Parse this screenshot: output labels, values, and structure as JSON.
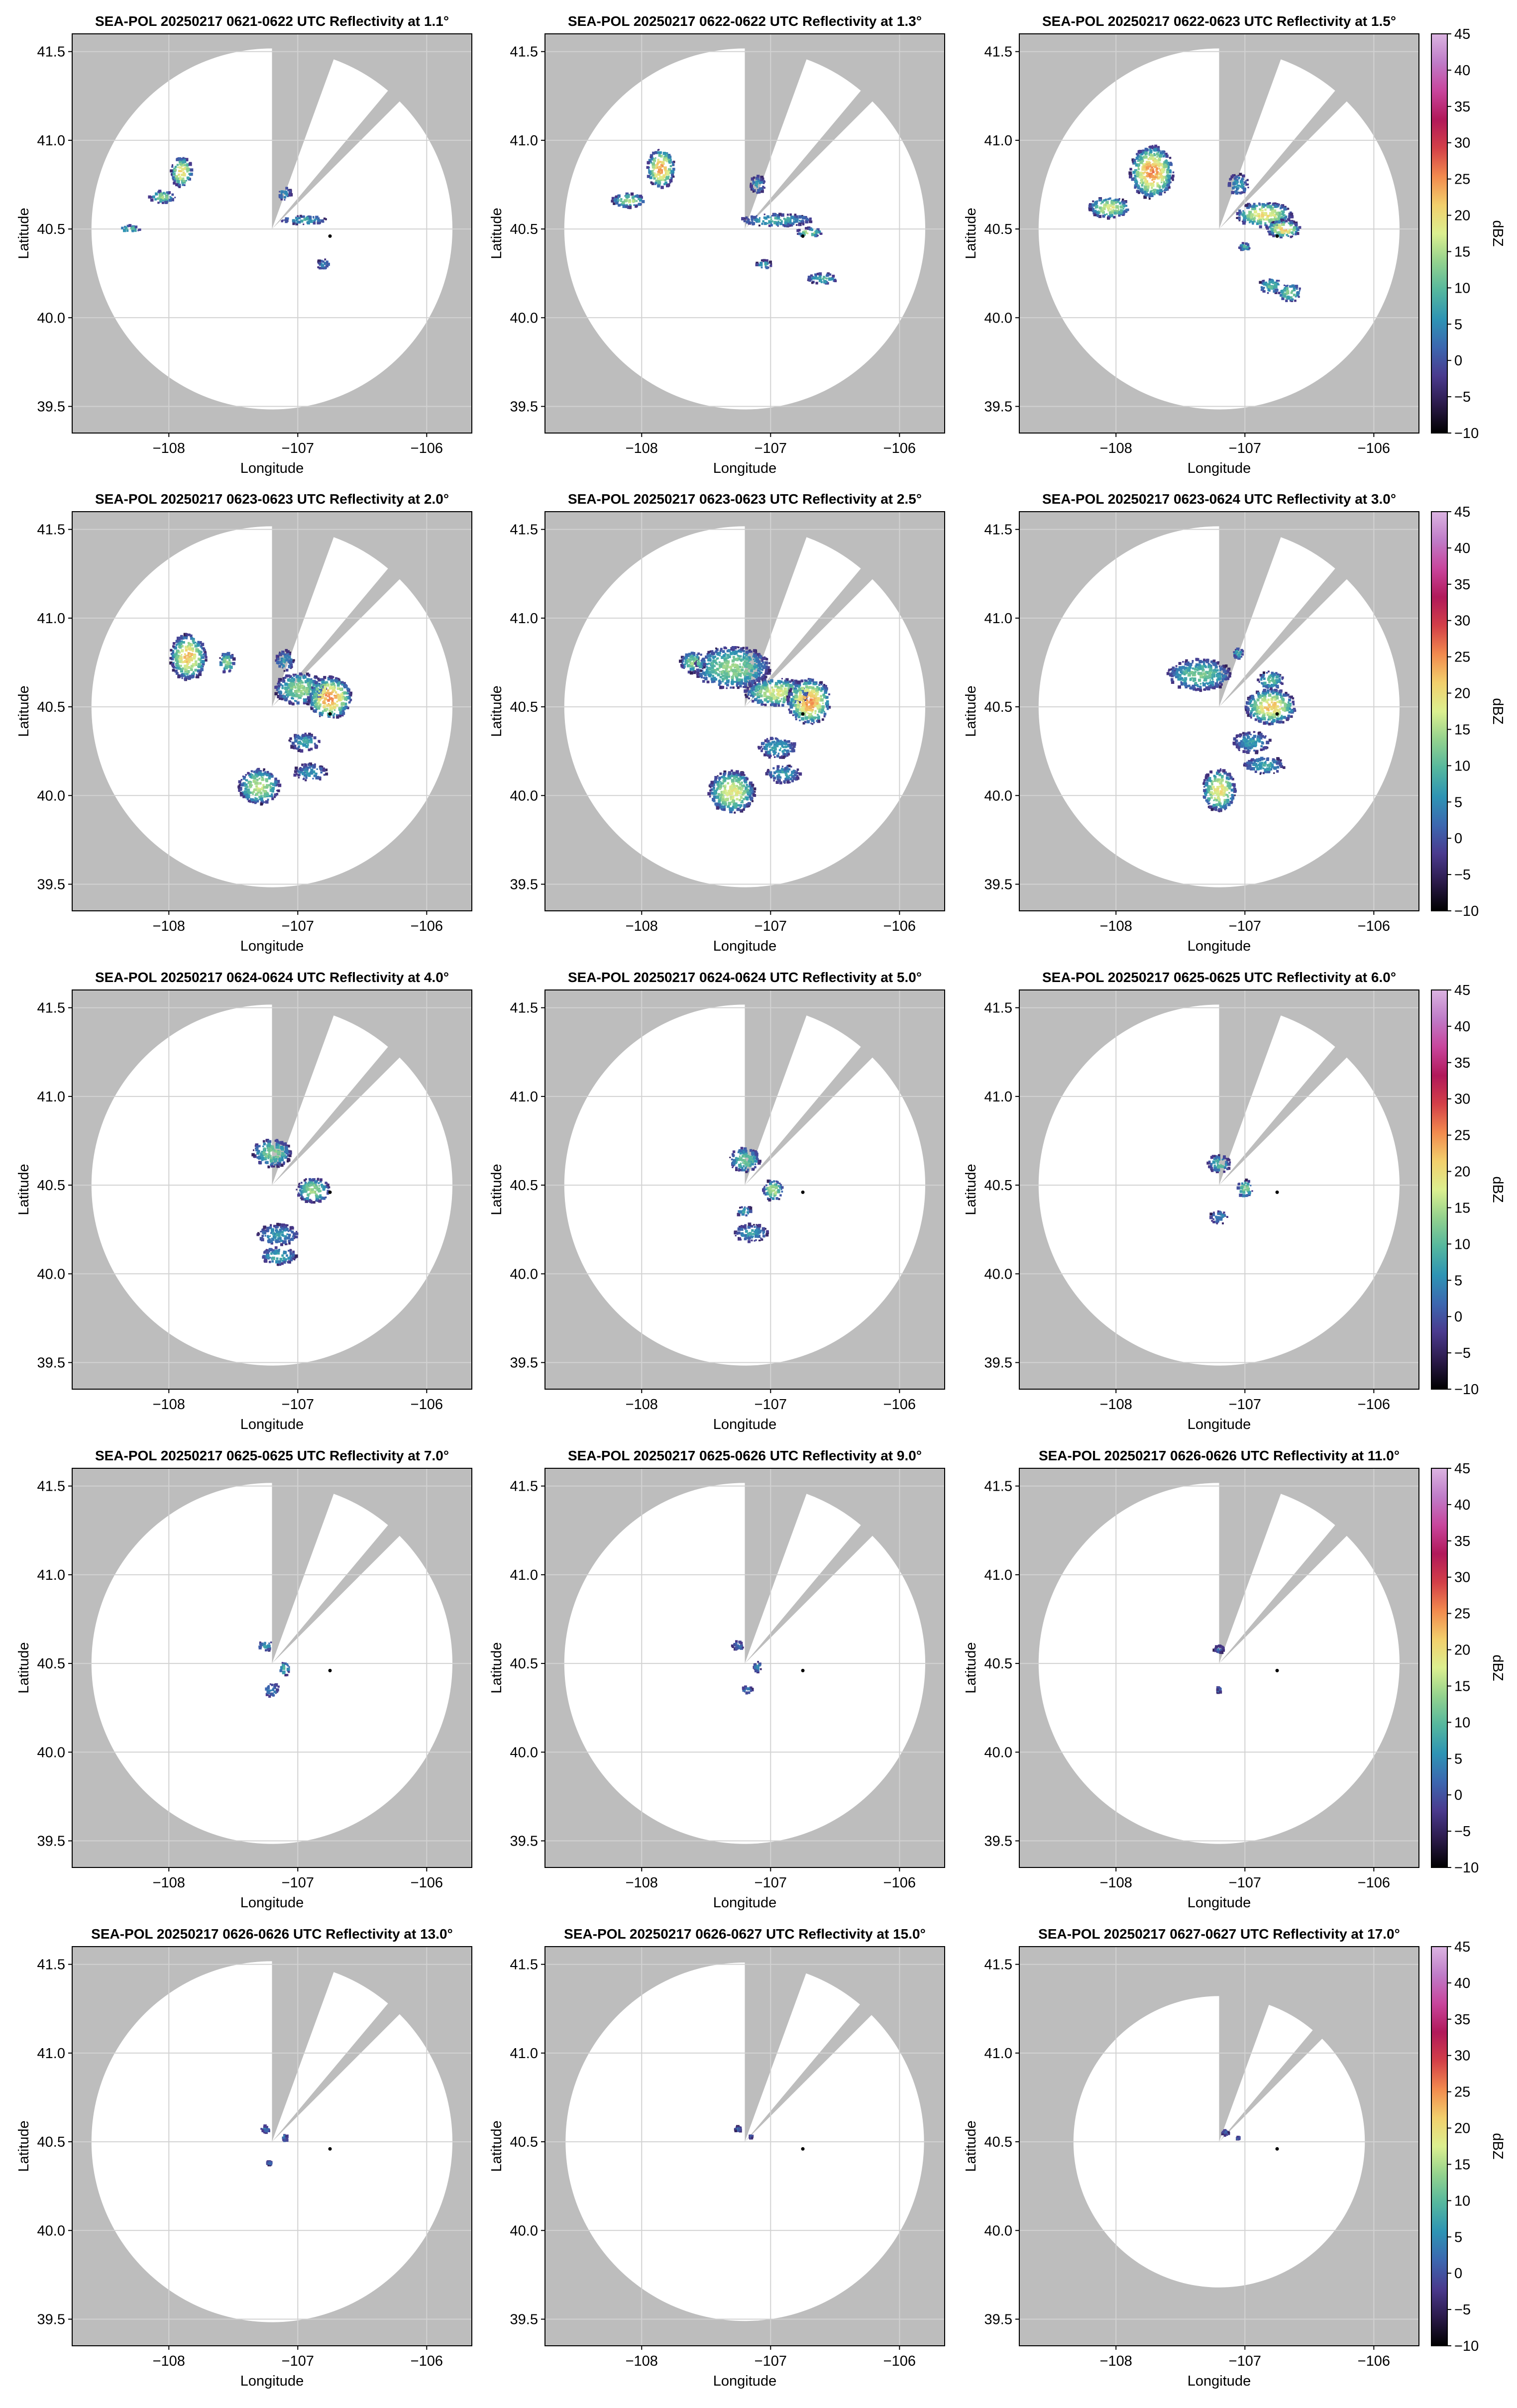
{
  "chart_data": {
    "type": "heatmap",
    "figure": "SEA-POL radar reflectivity PPI grid",
    "xlabel": "Longitude",
    "ylabel": "Latitude",
    "xlim": [
      -108.75,
      -105.65
    ],
    "ylim": [
      39.35,
      41.6
    ],
    "xticks": [
      -108,
      -107,
      -106
    ],
    "xtick_labels": [
      "−108",
      "−107",
      "−106"
    ],
    "yticks": [
      39.5,
      40.0,
      40.5,
      41.0,
      41.5
    ],
    "ytick_labels": [
      "39.5",
      "40.0",
      "40.5",
      "41.0",
      "41.5"
    ],
    "radar_site": [
      -107.2,
      40.5
    ],
    "target_point": [
      -106.75,
      40.46
    ],
    "blocked_sectors_deg": [
      [
        0,
        20
      ],
      [
        40,
        45
      ]
    ],
    "colorbar": {
      "label": "dBZ",
      "min": -10,
      "max": 45,
      "ticks": [
        -10,
        -5,
        0,
        5,
        10,
        15,
        20,
        25,
        30,
        35,
        40,
        45
      ],
      "tick_labels": [
        "−10",
        "−5",
        "0",
        "5",
        "10",
        "15",
        "20",
        "25",
        "30",
        "35",
        "40",
        "45"
      ],
      "colors": [
        "#000000",
        "#2b1a4a",
        "#4a3a8e",
        "#3c67b0",
        "#2e94b4",
        "#55b79e",
        "#93d28e",
        "#dcef8f",
        "#f2cf6c",
        "#f28a4e",
        "#d33f48",
        "#b1195a",
        "#c8459c",
        "#bf7cc8",
        "#dbb4e1"
      ]
    },
    "panels": [
      {
        "title": "SEA-POL 20250217 0621-0622 UTC Reflectivity at 1.1°",
        "elevation_deg": 1.1,
        "range_deg": 1.4,
        "echoes": [
          [
            -107.9,
            40.82,
            0.085,
            0.085,
            21
          ],
          [
            -108.05,
            40.68,
            0.1,
            0.035,
            14
          ],
          [
            -106.95,
            40.55,
            0.18,
            0.025,
            8
          ],
          [
            -107.1,
            40.7,
            0.05,
            0.04,
            6
          ],
          [
            -106.8,
            40.3,
            0.05,
            0.03,
            5
          ],
          [
            -108.3,
            40.5,
            0.08,
            0.02,
            12
          ]
        ]
      },
      {
        "title": "SEA-POL 20250217 0622-0622 UTC Reflectivity at 1.3°",
        "elevation_deg": 1.3,
        "range_deg": 1.4,
        "echoes": [
          [
            -107.85,
            40.84,
            0.11,
            0.11,
            24
          ],
          [
            -108.1,
            40.66,
            0.13,
            0.04,
            16
          ],
          [
            -106.95,
            40.55,
            0.28,
            0.035,
            9
          ],
          [
            -106.7,
            40.48,
            0.1,
            0.025,
            16
          ],
          [
            -106.6,
            40.22,
            0.12,
            0.03,
            10
          ],
          [
            -107.05,
            40.3,
            0.06,
            0.025,
            8
          ],
          [
            -107.1,
            40.75,
            0.06,
            0.05,
            7
          ]
        ]
      },
      {
        "title": "SEA-POL 20250217 0622-0623 UTC Reflectivity at 1.5°",
        "elevation_deg": 1.5,
        "range_deg": 1.4,
        "echoes": [
          [
            -107.72,
            40.82,
            0.17,
            0.15,
            25
          ],
          [
            -108.05,
            40.62,
            0.16,
            0.06,
            18
          ],
          [
            -106.85,
            40.58,
            0.22,
            0.07,
            20
          ],
          [
            -106.7,
            40.5,
            0.13,
            0.05,
            22
          ],
          [
            -107.05,
            40.75,
            0.08,
            0.06,
            7
          ],
          [
            -106.8,
            40.18,
            0.09,
            0.045,
            10
          ],
          [
            -106.65,
            40.14,
            0.09,
            0.05,
            14
          ],
          [
            -107.0,
            40.4,
            0.05,
            0.02,
            9
          ]
        ]
      },
      {
        "title": "SEA-POL 20250217 0623-0623 UTC Reflectivity at 2.0°",
        "elevation_deg": 2.0,
        "range_deg": 1.4,
        "echoes": [
          [
            -107.85,
            40.78,
            0.14,
            0.13,
            22
          ],
          [
            -106.98,
            40.6,
            0.2,
            0.09,
            14
          ],
          [
            -106.75,
            40.55,
            0.17,
            0.12,
            25
          ],
          [
            -106.95,
            40.3,
            0.12,
            0.05,
            8
          ],
          [
            -106.9,
            40.13,
            0.13,
            0.05,
            6
          ],
          [
            -107.3,
            40.05,
            0.16,
            0.1,
            17
          ],
          [
            -107.1,
            40.76,
            0.07,
            0.06,
            6
          ],
          [
            -107.55,
            40.75,
            0.06,
            0.06,
            14
          ]
        ]
      },
      {
        "title": "SEA-POL 20250217 0623-0623 UTC Reflectivity at 2.5°",
        "elevation_deg": 2.5,
        "range_deg": 1.4,
        "echoes": [
          [
            -107.3,
            40.72,
            0.3,
            0.12,
            14
          ],
          [
            -106.95,
            40.58,
            0.25,
            0.08,
            18
          ],
          [
            -106.7,
            40.53,
            0.17,
            0.13,
            25
          ],
          [
            -106.95,
            40.27,
            0.15,
            0.06,
            8
          ],
          [
            -106.9,
            40.12,
            0.14,
            0.05,
            7
          ],
          [
            -107.3,
            40.02,
            0.18,
            0.12,
            19
          ],
          [
            -107.6,
            40.75,
            0.1,
            0.06,
            14
          ]
        ]
      },
      {
        "title": "SEA-POL 20250217 0623-0624 UTC Reflectivity at 3.0°",
        "elevation_deg": 3.0,
        "range_deg": 1.4,
        "echoes": [
          [
            -107.35,
            40.68,
            0.25,
            0.09,
            12
          ],
          [
            -106.8,
            40.5,
            0.2,
            0.1,
            22
          ],
          [
            -106.95,
            40.3,
            0.15,
            0.06,
            7
          ],
          [
            -106.85,
            40.17,
            0.16,
            0.05,
            8
          ],
          [
            -107.2,
            40.03,
            0.13,
            0.12,
            20
          ],
          [
            -106.8,
            40.65,
            0.1,
            0.05,
            12
          ],
          [
            -107.05,
            40.8,
            0.04,
            0.03,
            10
          ]
        ]
      },
      {
        "title": "SEA-POL 20250217 0624-0624 UTC Reflectivity at 4.0°",
        "elevation_deg": 4.0,
        "range_deg": 1.4,
        "echoes": [
          [
            -107.2,
            40.68,
            0.15,
            0.08,
            13
          ],
          [
            -106.88,
            40.47,
            0.13,
            0.07,
            15
          ],
          [
            -107.15,
            40.22,
            0.16,
            0.06,
            7
          ],
          [
            -107.15,
            40.1,
            0.14,
            0.05,
            9
          ]
        ]
      },
      {
        "title": "SEA-POL 20250217 0624-0624 UTC Reflectivity at 5.0°",
        "elevation_deg": 5.0,
        "range_deg": 1.4,
        "echoes": [
          [
            -107.2,
            40.64,
            0.12,
            0.07,
            12
          ],
          [
            -106.98,
            40.47,
            0.08,
            0.06,
            16
          ],
          [
            -107.15,
            40.23,
            0.13,
            0.05,
            7
          ],
          [
            -107.2,
            40.35,
            0.06,
            0.03,
            8
          ]
        ]
      },
      {
        "title": "SEA-POL 20250217 0625-0625 UTC Reflectivity at 6.0°",
        "elevation_deg": 6.0,
        "range_deg": 1.4,
        "echoes": [
          [
            -107.2,
            40.62,
            0.09,
            0.05,
            10
          ],
          [
            -107.0,
            40.48,
            0.06,
            0.05,
            14
          ],
          [
            -107.2,
            40.32,
            0.07,
            0.04,
            5
          ]
        ]
      },
      {
        "title": "SEA-POL 20250217 0625-0625 UTC Reflectivity at 7.0°",
        "elevation_deg": 7.0,
        "range_deg": 1.4,
        "echoes": [
          [
            -107.25,
            40.6,
            0.06,
            0.03,
            6
          ],
          [
            -107.1,
            40.47,
            0.04,
            0.04,
            10
          ],
          [
            -107.2,
            40.35,
            0.06,
            0.04,
            5
          ]
        ]
      },
      {
        "title": "SEA-POL 20250217 0625-0626 UTC Reflectivity at 9.0°",
        "elevation_deg": 9.0,
        "range_deg": 1.4,
        "echoes": [
          [
            -107.25,
            40.6,
            0.05,
            0.025,
            3
          ],
          [
            -107.1,
            40.48,
            0.03,
            0.03,
            6
          ],
          [
            -107.18,
            40.35,
            0.04,
            0.02,
            4
          ]
        ]
      },
      {
        "title": "SEA-POL 20250217 0626-0626 UTC Reflectivity at 11.0°",
        "elevation_deg": 11.0,
        "range_deg": 1.4,
        "echoes": [
          [
            -107.2,
            40.58,
            0.04,
            0.02,
            3
          ],
          [
            -107.2,
            40.35,
            0.015,
            0.015,
            3
          ]
        ]
      },
      {
        "title": "SEA-POL 20250217 0626-0626 UTC Reflectivity at 13.0°",
        "elevation_deg": 13.0,
        "range_deg": 1.4,
        "echoes": [
          [
            -107.25,
            40.57,
            0.035,
            0.02,
            3
          ],
          [
            -107.1,
            40.52,
            0.02,
            0.02,
            5
          ],
          [
            -107.22,
            40.38,
            0.015,
            0.01,
            3
          ]
        ]
      },
      {
        "title": "SEA-POL 20250217 0626-0627 UTC Reflectivity at 15.0°",
        "elevation_deg": 15.0,
        "range_deg": 1.39,
        "echoes": [
          [
            -107.25,
            40.57,
            0.025,
            0.015,
            2
          ],
          [
            -107.15,
            40.53,
            0.01,
            0.01,
            3
          ]
        ]
      },
      {
        "title": "SEA-POL 20250217 0627-0627 UTC Reflectivity at 17.0°",
        "elevation_deg": 17.0,
        "range_deg": 1.13,
        "echoes": [
          [
            -107.15,
            40.55,
            0.025,
            0.015,
            2
          ],
          [
            -107.05,
            40.52,
            0.008,
            0.006,
            3
          ]
        ]
      }
    ]
  }
}
